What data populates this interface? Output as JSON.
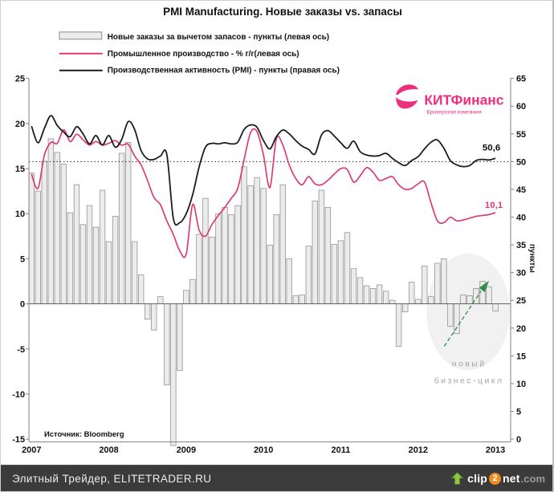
{
  "title": "PMI Manufacturing. Новые заказы vs. запасы",
  "legend": {
    "bars_label": "Новые заказы за вычетом запасов - пункты (левая ось)",
    "pink_label": "Промышленное производство - % г/г(левая ось)",
    "black_label": "Производственная активность (PMI) - пункты (правая ось)"
  },
  "logo": {
    "name": "КИТФинанс",
    "tagline": "Брокерская компания",
    "color": "#ee2e7e"
  },
  "source_note": "Источник: Bloomberg",
  "annotations": {
    "pmi_last_value": "50,6",
    "ip_last_value": "10,1",
    "cycle_line1": "новый",
    "cycle_line2": "бизнес-цикл"
  },
  "footer": {
    "credit": "Элитный Трейдер, ELITETRADER.RU",
    "watermark": {
      "part1": "clip",
      "digit": "2",
      "part2": "net",
      "suffix": ".com"
    }
  },
  "colors": {
    "bar_fill": "#ececec",
    "bar_stroke": "#939393",
    "pink_line": "#dd3a78",
    "black_line": "#1c1c1c",
    "axis": "#808080",
    "dotted_line": "#222222",
    "arrow_green": "#2f8d44",
    "ellipse_fill": "#f1f1f1",
    "cycle_text": "#a6a6a6"
  },
  "chart_data": {
    "type": "bar+line",
    "x_start_year": 2007,
    "x_months_count": 73,
    "x_year_labels": [
      "2007",
      "2008",
      "2009",
      "2010",
      "2011",
      "2012",
      "2013"
    ],
    "left_axis": {
      "min": -15,
      "max": 25,
      "ticks": [
        25,
        20,
        15,
        10,
        5,
        0,
        -5,
        -10,
        -15
      ]
    },
    "right_axis": {
      "min": 0,
      "max": 65,
      "ticks": [
        65,
        60,
        55,
        50,
        45,
        40,
        35,
        30,
        25,
        20,
        15,
        10,
        5,
        0
      ],
      "title": "пункты"
    },
    "reference_line_right_value": 50,
    "grid": false,
    "legend_position": "top-left",
    "series": [
      {
        "name": "Новые заказы за вычетом запасов (пункты, левая ось)",
        "type": "bar",
        "axis": "left",
        "values": [
          14.5,
          12.5,
          15.8,
          18.3,
          16.8,
          15.5,
          10.1,
          13.2,
          8.8,
          10.9,
          8.5,
          12.6,
          6.9,
          9.7,
          16.7,
          17.9,
          6.9,
          3.2,
          -1.7,
          -2.9,
          0.8,
          -9.0,
          -16.5,
          -7.4,
          1.5,
          2.7,
          7.7,
          11.7,
          7.4,
          10.0,
          10.7,
          9.9,
          10.9,
          15.2,
          13.1,
          14.0,
          12.8,
          6.5,
          9.9,
          13.2,
          5.0,
          0.9,
          1.0,
          6.4,
          11.4,
          12.6,
          10.7,
          6.6,
          7.0,
          7.9,
          3.9,
          2.9,
          2.0,
          1.7,
          2.1,
          1.4,
          0.4,
          -4.7,
          -0.9,
          2.4,
          0.5,
          4.2,
          0.8,
          4.5,
          5.0,
          -2.5,
          -3.3,
          1.0,
          0.9,
          1.7,
          2.5,
          1.9,
          -0.8
        ]
      },
      {
        "name": "Промышленное производство, % г/г (левая ось)",
        "type": "line",
        "axis": "left",
        "values": [
          14.4,
          12.8,
          16.5,
          17.9,
          17.8,
          19.3,
          18.0,
          18.8,
          18.2,
          17.6,
          18.0,
          17.6,
          17.8,
          18.1,
          17.6,
          17.7,
          16.4,
          15.4,
          13.7,
          11.8,
          11.0,
          9.2,
          7.7,
          5.9,
          5.5,
          11.0,
          8.2,
          7.5,
          8.8,
          9.8,
          10.7,
          11.7,
          12.8,
          16.0,
          19.0,
          19.1,
          16.5,
          12.9,
          18.3,
          17.6,
          15.4,
          13.9,
          13.2,
          14.1,
          13.3,
          13.2,
          13.7,
          14.4,
          15.0,
          14.9,
          13.5,
          14.2,
          15.1,
          14.6,
          13.7,
          13.9,
          14.1,
          13.2,
          12.7,
          12.8,
          13.3,
          13.5,
          11.2,
          9.2,
          9.0,
          9.6,
          9.2,
          9.3,
          9.5,
          9.7,
          9.8,
          9.9,
          10.1
        ]
      },
      {
        "name": "Производственная активность PMI (пункты, правая ось)",
        "type": "line",
        "axis": "right",
        "values": [
          56.4,
          53.4,
          56.0,
          58.3,
          56.5,
          55.3,
          54.5,
          56.3,
          55.0,
          53.2,
          54.7,
          53.0,
          54.7,
          52.6,
          54.0,
          57.2,
          55.8,
          52.0,
          50.5,
          50.4,
          51.0,
          51.3,
          39.8,
          39.0,
          40.6,
          44.0,
          49.0,
          52.6,
          53.3,
          53.2,
          53.4,
          53.2,
          53.5,
          55.8,
          56.6,
          56.2,
          53.8,
          52.3,
          54.5,
          55.7,
          55.0,
          53.8,
          52.8,
          52.2,
          51.4,
          54.8,
          55.6,
          54.6,
          53.4,
          52.4,
          53.7,
          51.8,
          51.2,
          51.0,
          51.1,
          51.5,
          50.6,
          49.8,
          49.3,
          50.2,
          50.9,
          52.3,
          53.5,
          53.9,
          52.4,
          50.2,
          49.4,
          49.1,
          49.3,
          50.2,
          50.4,
          50.3,
          50.6
        ]
      }
    ],
    "last_values": {
      "pmi": 50.6,
      "industrial_production": 10.1
    }
  }
}
